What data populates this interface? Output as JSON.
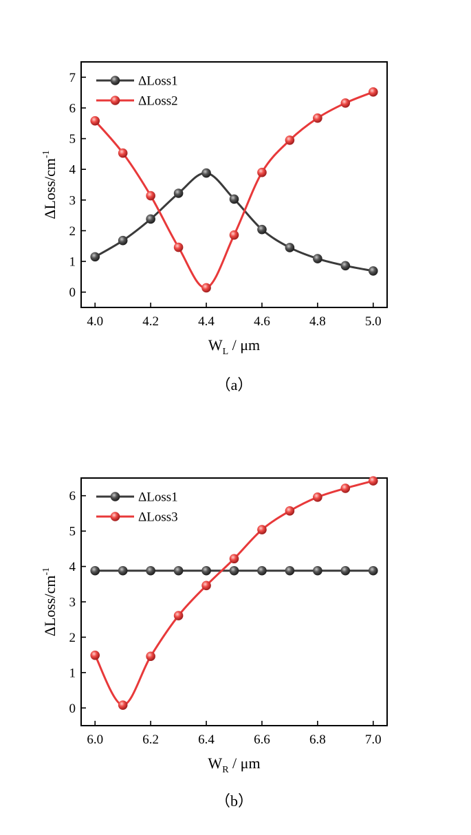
{
  "chart_data": [
    {
      "type": "line",
      "caption": "（a）",
      "xlabel": "W",
      "xlabel_sub": "L",
      "xlabel_unit": " / μm",
      "ylabel": "ΔLoss/cm",
      "ylabel_sup": "-1",
      "xlim": [
        3.95,
        5.05
      ],
      "ylim": [
        -0.5,
        7.5
      ],
      "xticks": [
        4.0,
        4.2,
        4.4,
        4.6,
        4.8,
        5.0
      ],
      "xtick_labels": [
        "4.0",
        "4.2",
        "4.4",
        "4.6",
        "4.8",
        "5.0"
      ],
      "yticks": [
        0,
        1,
        2,
        3,
        4,
        5,
        6,
        7
      ],
      "ytick_labels": [
        "0",
        "1",
        "2",
        "3",
        "4",
        "5",
        "6",
        "7"
      ],
      "grid": false,
      "legend_position": "top-left",
      "x": [
        4.0,
        4.1,
        4.2,
        4.3,
        4.4,
        4.5,
        4.6,
        4.7,
        4.8,
        4.9,
        5.0
      ],
      "series": [
        {
          "name": "ΔLoss1",
          "color": "#3a3a3a",
          "values": [
            1.15,
            1.68,
            2.38,
            3.22,
            3.88,
            3.03,
            2.04,
            1.45,
            1.09,
            0.86,
            0.69
          ]
        },
        {
          "name": "ΔLoss2",
          "color": "#e8393a",
          "values": [
            5.58,
            4.53,
            3.14,
            1.46,
            0.14,
            1.86,
            3.9,
            4.95,
            5.67,
            6.16,
            6.52
          ]
        }
      ]
    },
    {
      "type": "line",
      "caption": "（b）",
      "xlabel": "W",
      "xlabel_sub": "R",
      "xlabel_unit": " / μm",
      "ylabel": "ΔLoss/cm",
      "ylabel_sup": "-1",
      "xlim": [
        5.95,
        7.05
      ],
      "ylim": [
        -0.5,
        6.5
      ],
      "xticks": [
        6.0,
        6.2,
        6.4,
        6.6,
        6.8,
        7.0
      ],
      "xtick_labels": [
        "6.0",
        "6.2",
        "6.4",
        "6.6",
        "6.8",
        "7.0"
      ],
      "yticks": [
        0,
        1,
        2,
        3,
        4,
        5,
        6
      ],
      "ytick_labels": [
        "0",
        "1",
        "2",
        "3",
        "4",
        "5",
        "6"
      ],
      "grid": false,
      "legend_position": "top-left",
      "x": [
        6.0,
        6.1,
        6.2,
        6.3,
        6.4,
        6.5,
        6.6,
        6.7,
        6.8,
        6.9,
        7.0
      ],
      "series": [
        {
          "name": "ΔLoss1",
          "color": "#3a3a3a",
          "values": [
            3.88,
            3.88,
            3.88,
            3.88,
            3.88,
            3.88,
            3.88,
            3.88,
            3.88,
            3.88,
            3.88
          ]
        },
        {
          "name": "ΔLoss3",
          "color": "#e8393a",
          "values": [
            1.49,
            0.08,
            1.46,
            2.61,
            3.46,
            4.22,
            5.04,
            5.57,
            5.96,
            6.21,
            6.42
          ]
        }
      ]
    }
  ]
}
